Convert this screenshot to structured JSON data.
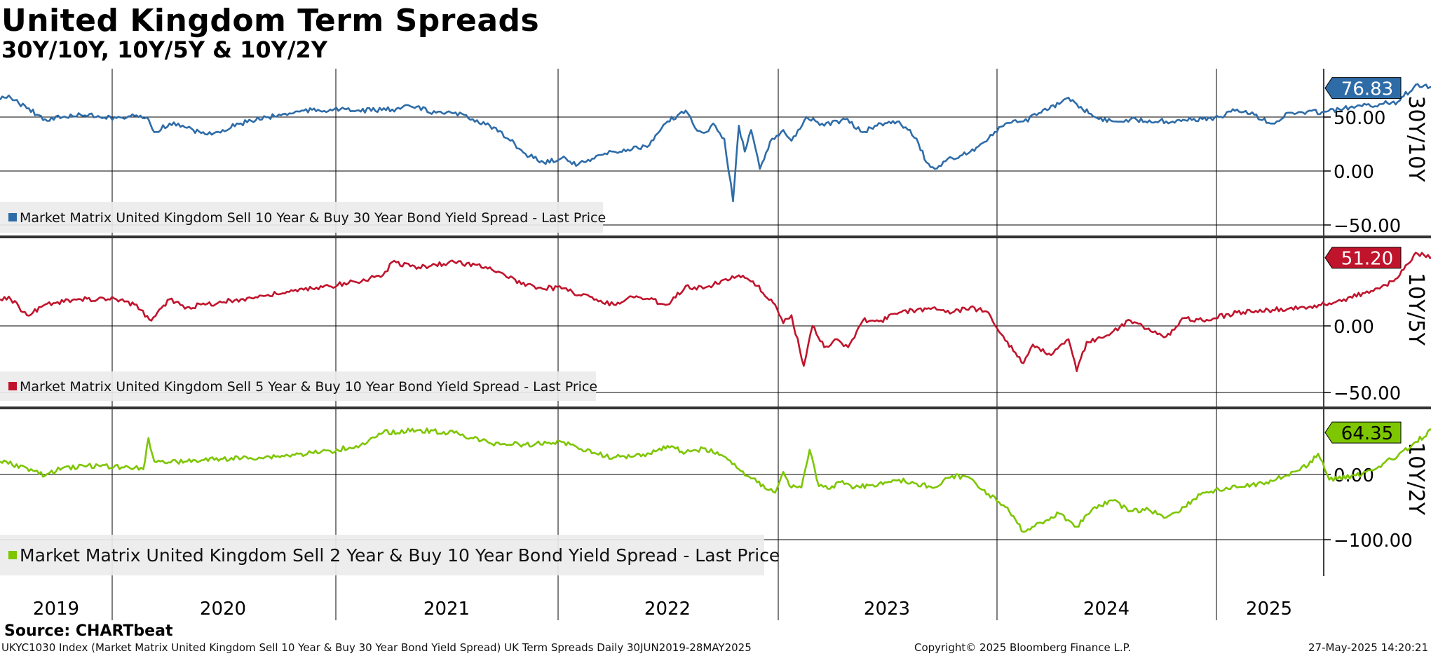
{
  "header": {
    "title": "United Kingdom Term Spreads",
    "subtitle": "30Y/10Y, 10Y/5Y & 10Y/2Y"
  },
  "footer": {
    "source": "Source: CHARTbeat",
    "left": "UKYC1030 Index (Market Matrix United Kingdom Sell 10 Year & Buy 30 Year Bond Yield Spread) UK Term Spreads  Daily 30JUN2019-28MAY2025",
    "middle": "Copyright© 2025 Bloomberg Finance L.P.",
    "right": "27-May-2025 14:20:21"
  },
  "chart_data": {
    "type": "line",
    "x_axis": {
      "labels": [
        "2019",
        "2020",
        "2021",
        "2022",
        "2023",
        "2024",
        "2025"
      ],
      "start": "2019-06-30",
      "end": "2025-05-28"
    },
    "panels": [
      {
        "axis_title": "30Y/10Y",
        "color": "#2e6ca8",
        "legend": "Market Matrix United Kingdom Sell 10 Year & Buy 30 Year Bond Yield Spread - Last Price",
        "last_value_label": "76.83",
        "last_value": 76.83,
        "ylim": [
          -50,
          120
        ],
        "yticks": [
          50,
          0,
          -50
        ],
        "ytick_labels": [
          "50.00",
          "0.00",
          "-50.00"
        ],
        "series": [
          {
            "x": "2019-06-30",
            "y": 66
          },
          {
            "x": "2019-07-15",
            "y": 70
          },
          {
            "x": "2019-08-15",
            "y": 58
          },
          {
            "x": "2019-09-15",
            "y": 48
          },
          {
            "x": "2019-10-15",
            "y": 50
          },
          {
            "x": "2019-11-15",
            "y": 52
          },
          {
            "x": "2019-12-15",
            "y": 51
          },
          {
            "x": "2020-01-15",
            "y": 49
          },
          {
            "x": "2020-02-15",
            "y": 51
          },
          {
            "x": "2020-03-10",
            "y": 48
          },
          {
            "x": "2020-03-20",
            "y": 36
          },
          {
            "x": "2020-04-15",
            "y": 44
          },
          {
            "x": "2020-05-15",
            "y": 40
          },
          {
            "x": "2020-06-15",
            "y": 34
          },
          {
            "x": "2020-07-15",
            "y": 38
          },
          {
            "x": "2020-08-15",
            "y": 44
          },
          {
            "x": "2020-10-01",
            "y": 50
          },
          {
            "x": "2020-12-01",
            "y": 56
          },
          {
            "x": "2021-01-15",
            "y": 57
          },
          {
            "x": "2021-03-01",
            "y": 56
          },
          {
            "x": "2021-05-01",
            "y": 57
          },
          {
            "x": "2021-06-01",
            "y": 60
          },
          {
            "x": "2021-07-15",
            "y": 54
          },
          {
            "x": "2021-09-01",
            "y": 52
          },
          {
            "x": "2021-10-15",
            "y": 42
          },
          {
            "x": "2021-11-15",
            "y": 30
          },
          {
            "x": "2021-12-15",
            "y": 16
          },
          {
            "x": "2022-01-15",
            "y": 8
          },
          {
            "x": "2022-02-15",
            "y": 12
          },
          {
            "x": "2022-03-15",
            "y": 6
          },
          {
            "x": "2022-04-15",
            "y": 14
          },
          {
            "x": "2022-05-15",
            "y": 18
          },
          {
            "x": "2022-06-15",
            "y": 20
          },
          {
            "x": "2022-07-15",
            "y": 24
          },
          {
            "x": "2022-08-15",
            "y": 46
          },
          {
            "x": "2022-09-15",
            "y": 56
          },
          {
            "x": "2022-10-01",
            "y": 40
          },
          {
            "x": "2022-10-20",
            "y": 36
          },
          {
            "x": "2022-11-01",
            "y": 44
          },
          {
            "x": "2022-11-20",
            "y": 30
          },
          {
            "x": "2022-12-05",
            "y": -28
          },
          {
            "x": "2022-12-15",
            "y": 42
          },
          {
            "x": "2022-12-25",
            "y": 18
          },
          {
            "x": "2023-01-05",
            "y": 38
          },
          {
            "x": "2023-01-20",
            "y": 2
          },
          {
            "x": "2023-02-10",
            "y": 30
          },
          {
            "x": "2023-03-01",
            "y": 38
          },
          {
            "x": "2023-03-15",
            "y": 28
          },
          {
            "x": "2023-04-10",
            "y": 50
          },
          {
            "x": "2023-05-10",
            "y": 42
          },
          {
            "x": "2023-06-15",
            "y": 48
          },
          {
            "x": "2023-07-15",
            "y": 36
          },
          {
            "x": "2023-08-15",
            "y": 44
          },
          {
            "x": "2023-09-15",
            "y": 46
          },
          {
            "x": "2023-10-15",
            "y": 30
          },
          {
            "x": "2023-11-01",
            "y": 8
          },
          {
            "x": "2023-11-15",
            "y": 2
          },
          {
            "x": "2023-12-15",
            "y": 12
          },
          {
            "x": "2024-01-15",
            "y": 18
          },
          {
            "x": "2024-02-15",
            "y": 30
          },
          {
            "x": "2024-03-15",
            "y": 44
          },
          {
            "x": "2024-04-15",
            "y": 46
          },
          {
            "x": "2024-05-15",
            "y": 54
          },
          {
            "x": "2024-06-15",
            "y": 62
          },
          {
            "x": "2024-07-01",
            "y": 68
          },
          {
            "x": "2024-07-15",
            "y": 62
          },
          {
            "x": "2024-08-15",
            "y": 50
          },
          {
            "x": "2024-09-15",
            "y": 46
          },
          {
            "x": "2024-10-15",
            "y": 48
          },
          {
            "x": "2024-12-15",
            "y": 46
          },
          {
            "x": "2025-02-15",
            "y": 48
          },
          {
            "x": "2025-03-15",
            "y": 50
          },
          {
            "x": "2025-04-15",
            "y": 57
          },
          {
            "x": "2025-05-15",
            "y": 52
          },
          {
            "x": "2025-06-15",
            "y": 44
          },
          {
            "x": "2025-07-15",
            "y": 54
          },
          {
            "x": "2025-09-15",
            "y": 55
          },
          {
            "x": "2025-10-15",
            "y": 58
          },
          {
            "x": "2025-11-15",
            "y": 60
          },
          {
            "x": "2025-12-15",
            "y": 62
          },
          {
            "x": "2026-01-15",
            "y": 64
          },
          {
            "x": "2026-02-15",
            "y": 80
          },
          {
            "x": "2026-03-15",
            "y": 78
          },
          {
            "x": "2026-04-15",
            "y": 76.83
          }
        ]
      },
      {
        "axis_title": "10Y/5Y",
        "color": "#c0142c",
        "legend": "Market Matrix United Kingdom Sell 5 Year & Buy 10 Year Bond Yield Spread - Last Price",
        "last_value_label": "51.20",
        "last_value": 51.2,
        "ylim": [
          -50,
          60
        ],
        "yticks": [
          0,
          -50
        ],
        "ytick_labels": [
          "0.00",
          "-50.00"
        ],
        "series": [
          {
            "x": "2019-06-30",
            "y": 20
          },
          {
            "x": "2019-07-15",
            "y": 22
          },
          {
            "x": "2019-08-15",
            "y": 8
          },
          {
            "x": "2019-09-15",
            "y": 16
          },
          {
            "x": "2019-11-15",
            "y": 20
          },
          {
            "x": "2020-01-15",
            "y": 20
          },
          {
            "x": "2020-02-15",
            "y": 16
          },
          {
            "x": "2020-03-15",
            "y": 4
          },
          {
            "x": "2020-04-15",
            "y": 20
          },
          {
            "x": "2020-05-15",
            "y": 14
          },
          {
            "x": "2020-06-15",
            "y": 16
          },
          {
            "x": "2020-08-15",
            "y": 20
          },
          {
            "x": "2020-10-15",
            "y": 24
          },
          {
            "x": "2020-12-15",
            "y": 28
          },
          {
            "x": "2021-02-15",
            "y": 32
          },
          {
            "x": "2021-04-15",
            "y": 38
          },
          {
            "x": "2021-05-01",
            "y": 48
          },
          {
            "x": "2021-06-15",
            "y": 44
          },
          {
            "x": "2021-08-15",
            "y": 48
          },
          {
            "x": "2021-10-15",
            "y": 44
          },
          {
            "x": "2021-12-15",
            "y": 30
          },
          {
            "x": "2022-02-15",
            "y": 28
          },
          {
            "x": "2022-04-15",
            "y": 20
          },
          {
            "x": "2022-05-15",
            "y": 16
          },
          {
            "x": "2022-06-15",
            "y": 22
          },
          {
            "x": "2022-07-15",
            "y": 20
          },
          {
            "x": "2022-08-15",
            "y": 16
          },
          {
            "x": "2022-09-15",
            "y": 30
          },
          {
            "x": "2022-10-15",
            "y": 28
          },
          {
            "x": "2022-11-15",
            "y": 34
          },
          {
            "x": "2022-12-15",
            "y": 38
          },
          {
            "x": "2023-01-15",
            "y": 30
          },
          {
            "x": "2023-02-15",
            "y": 16
          },
          {
            "x": "2023-03-01",
            "y": 2
          },
          {
            "x": "2023-03-15",
            "y": 8
          },
          {
            "x": "2023-04-05",
            "y": -30
          },
          {
            "x": "2023-04-20",
            "y": 0
          },
          {
            "x": "2023-05-10",
            "y": -16
          },
          {
            "x": "2023-06-01",
            "y": -10
          },
          {
            "x": "2023-06-20",
            "y": -16
          },
          {
            "x": "2023-07-15",
            "y": 4
          },
          {
            "x": "2023-08-15",
            "y": 4
          },
          {
            "x": "2023-09-15",
            "y": 10
          },
          {
            "x": "2023-10-15",
            "y": 12
          },
          {
            "x": "2023-11-15",
            "y": 14
          },
          {
            "x": "2023-12-15",
            "y": 10
          },
          {
            "x": "2024-01-15",
            "y": 14
          },
          {
            "x": "2024-02-15",
            "y": 10
          },
          {
            "x": "2024-03-01",
            "y": -2
          },
          {
            "x": "2024-04-01",
            "y": -20
          },
          {
            "x": "2024-04-15",
            "y": -28
          },
          {
            "x": "2024-05-01",
            "y": -14
          },
          {
            "x": "2024-06-01",
            "y": -22
          },
          {
            "x": "2024-07-01",
            "y": -10
          },
          {
            "x": "2024-07-15",
            "y": -34
          },
          {
            "x": "2024-08-01",
            "y": -12
          },
          {
            "x": "2024-09-01",
            "y": -8
          },
          {
            "x": "2024-10-15",
            "y": 4
          },
          {
            "x": "2024-11-15",
            "y": -2
          },
          {
            "x": "2024-12-15",
            "y": -8
          },
          {
            "x": "2025-01-15",
            "y": 6
          },
          {
            "x": "2025-02-15",
            "y": 4
          },
          {
            "x": "2025-04-15",
            "y": 10
          },
          {
            "x": "2025-06-15",
            "y": 12
          },
          {
            "x": "2025-08-15",
            "y": 14
          },
          {
            "x": "2025-10-15",
            "y": 20
          },
          {
            "x": "2025-12-15",
            "y": 28
          },
          {
            "x": "2026-01-15",
            "y": 36
          },
          {
            "x": "2026-02-15",
            "y": 55
          },
          {
            "x": "2026-03-15",
            "y": 52
          },
          {
            "x": "2026-04-15",
            "y": 51.2
          }
        ]
      },
      {
        "axis_title": "10Y/2Y",
        "color": "#7dc600",
        "legend": "Market Matrix United Kingdom Sell 2 Year & Buy 10 Year Bond Yield Spread - Last Price",
        "last_value_label": "64.35",
        "last_value": 64.35,
        "ylim": [
          -150,
          80
        ],
        "yticks": [
          0,
          -100
        ],
        "ytick_labels": [
          "0.00",
          "-100.00"
        ],
        "series": [
          {
            "x": "2019-06-30",
            "y": 20
          },
          {
            "x": "2019-08-15",
            "y": 10
          },
          {
            "x": "2019-09-15",
            "y": -2
          },
          {
            "x": "2019-10-15",
            "y": 10
          },
          {
            "x": "2019-12-15",
            "y": 14
          },
          {
            "x": "2020-02-15",
            "y": 10
          },
          {
            "x": "2020-03-01",
            "y": 8
          },
          {
            "x": "2020-03-10",
            "y": 56
          },
          {
            "x": "2020-03-20",
            "y": 20
          },
          {
            "x": "2020-05-15",
            "y": 20
          },
          {
            "x": "2020-07-15",
            "y": 24
          },
          {
            "x": "2020-09-15",
            "y": 26
          },
          {
            "x": "2020-11-15",
            "y": 30
          },
          {
            "x": "2021-01-15",
            "y": 36
          },
          {
            "x": "2021-03-15",
            "y": 46
          },
          {
            "x": "2021-04-15",
            "y": 64
          },
          {
            "x": "2021-06-15",
            "y": 68
          },
          {
            "x": "2021-08-15",
            "y": 64
          },
          {
            "x": "2021-10-15",
            "y": 48
          },
          {
            "x": "2021-12-15",
            "y": 46
          },
          {
            "x": "2022-02-15",
            "y": 50
          },
          {
            "x": "2022-04-15",
            "y": 32
          },
          {
            "x": "2022-05-15",
            "y": 26
          },
          {
            "x": "2022-07-15",
            "y": 32
          },
          {
            "x": "2022-08-15",
            "y": 44
          },
          {
            "x": "2022-09-15",
            "y": 34
          },
          {
            "x": "2022-10-15",
            "y": 40
          },
          {
            "x": "2022-11-15",
            "y": 30
          },
          {
            "x": "2022-12-15",
            "y": 8
          },
          {
            "x": "2023-01-15",
            "y": -12
          },
          {
            "x": "2023-02-15",
            "y": -28
          },
          {
            "x": "2023-03-01",
            "y": 4
          },
          {
            "x": "2023-03-15",
            "y": -20
          },
          {
            "x": "2023-04-01",
            "y": -20
          },
          {
            "x": "2023-04-15",
            "y": 38
          },
          {
            "x": "2023-05-01",
            "y": -18
          },
          {
            "x": "2023-05-20",
            "y": -22
          },
          {
            "x": "2023-06-10",
            "y": -10
          },
          {
            "x": "2023-07-01",
            "y": -20
          },
          {
            "x": "2023-08-01",
            "y": -16
          },
          {
            "x": "2023-09-15",
            "y": -8
          },
          {
            "x": "2023-10-15",
            "y": -14
          },
          {
            "x": "2023-11-15",
            "y": -20
          },
          {
            "x": "2023-12-15",
            "y": -2
          },
          {
            "x": "2024-01-15",
            "y": -6
          },
          {
            "x": "2024-02-15",
            "y": -30
          },
          {
            "x": "2024-03-15",
            "y": -50
          },
          {
            "x": "2024-04-15",
            "y": -88
          },
          {
            "x": "2024-05-15",
            "y": -74
          },
          {
            "x": "2024-06-15",
            "y": -60
          },
          {
            "x": "2024-07-15",
            "y": -80
          },
          {
            "x": "2024-08-15",
            "y": -50
          },
          {
            "x": "2024-09-15",
            "y": -40
          },
          {
            "x": "2024-10-15",
            "y": -56
          },
          {
            "x": "2024-11-15",
            "y": -54
          },
          {
            "x": "2024-12-15",
            "y": -66
          },
          {
            "x": "2025-01-15",
            "y": -50
          },
          {
            "x": "2025-02-15",
            "y": -28
          },
          {
            "x": "2025-04-15",
            "y": -20
          },
          {
            "x": "2025-06-15",
            "y": -10
          },
          {
            "x": "2025-08-15",
            "y": 14
          },
          {
            "x": "2025-09-01",
            "y": 32
          },
          {
            "x": "2025-09-20",
            "y": -8
          },
          {
            "x": "2025-11-15",
            "y": 0
          },
          {
            "x": "2026-01-15",
            "y": 28
          },
          {
            "x": "2026-02-15",
            "y": 50
          },
          {
            "x": "2026-03-15",
            "y": 68
          },
          {
            "x": "2026-04-15",
            "y": 64.35
          }
        ]
      }
    ]
  }
}
